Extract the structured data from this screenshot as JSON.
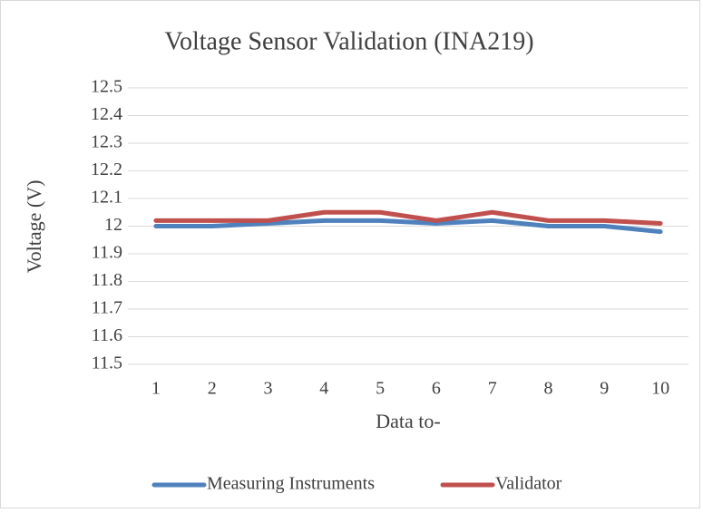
{
  "chart_data": {
    "type": "line",
    "title": "Voltage Sensor Validation (INA219)",
    "x_label": "Data to-",
    "y_label": "Voltage (V)",
    "categories": [
      "1",
      "2",
      "3",
      "4",
      "5",
      "6",
      "7",
      "8",
      "9",
      "10"
    ],
    "series": [
      {
        "name": "Measuring Instruments",
        "color": "#4f81bd",
        "values": [
          12.0,
          12.0,
          12.01,
          12.02,
          12.02,
          12.01,
          12.02,
          12.0,
          12.0,
          11.98
        ]
      },
      {
        "name": "Validator",
        "color": "#c0504d",
        "values": [
          12.02,
          12.02,
          12.02,
          12.05,
          12.05,
          12.02,
          12.05,
          12.02,
          12.02,
          12.01
        ]
      }
    ],
    "ylim": [
      11.5,
      12.5
    ],
    "yticks": [
      11.5,
      11.6,
      11.7,
      11.8,
      11.9,
      12,
      12.1,
      12.2,
      12.3,
      12.4,
      12.5
    ],
    "grid": true,
    "legend": "bottom"
  }
}
